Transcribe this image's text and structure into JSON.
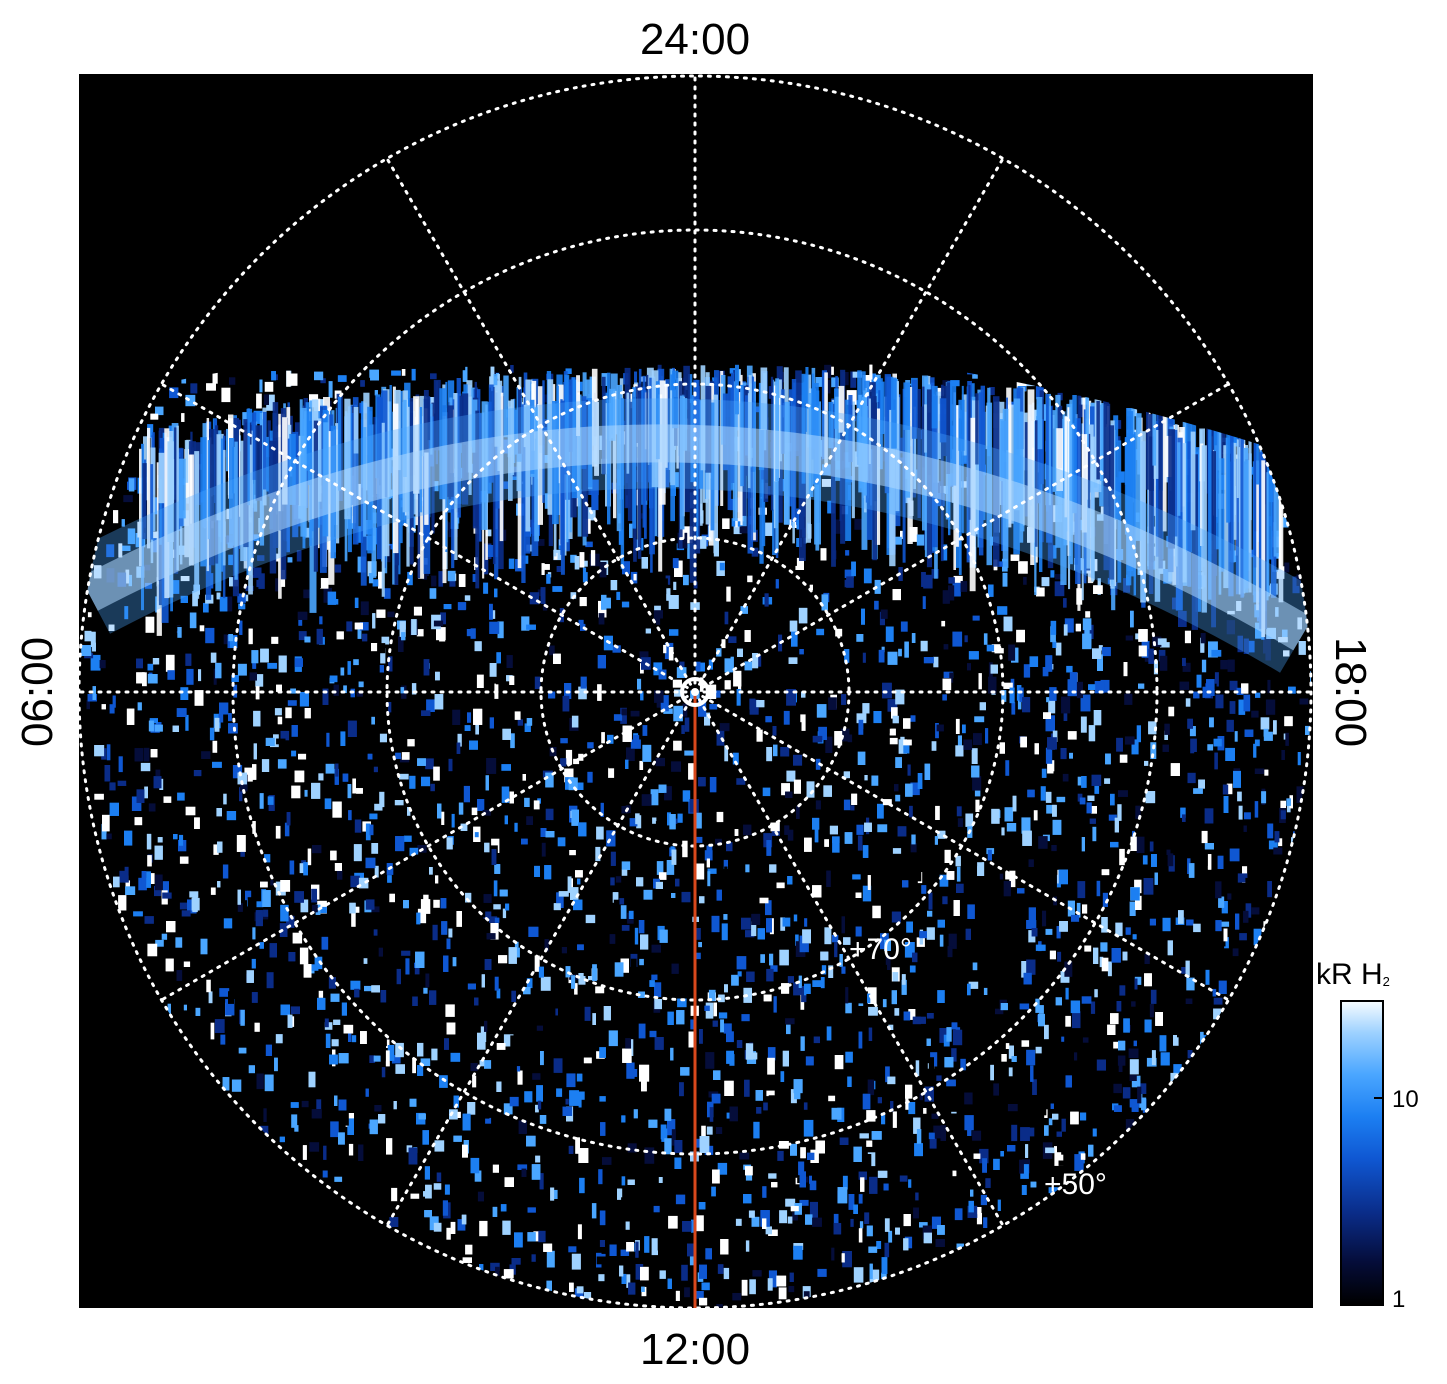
{
  "figure": {
    "local_time_labels": {
      "top": "24:00",
      "bottom": "12:00",
      "left": "06:00",
      "right": "18:00"
    },
    "latitude_labels": [
      "+70°",
      "+50°"
    ],
    "colorbar": {
      "title_main": "kR H",
      "title_sub": "2",
      "tick_labels": [
        "10",
        "1"
      ],
      "scale": "log",
      "colors": [
        "#000000",
        "#0a2c88",
        "#1c7ff2",
        "#9fd2ff",
        "#ffffff"
      ]
    },
    "colors": {
      "background": "#000000",
      "grid": "#ffffff",
      "meridian_line": "#d9481c"
    }
  }
}
